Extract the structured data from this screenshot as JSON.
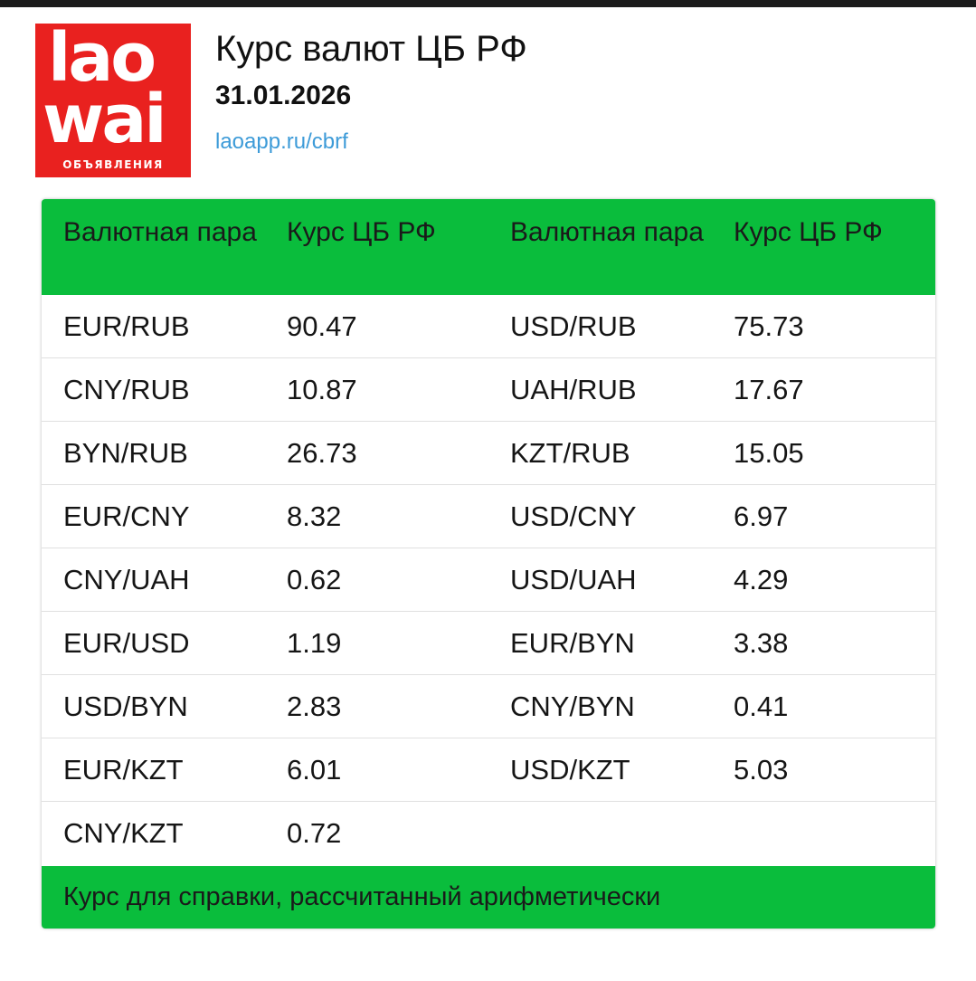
{
  "logo": {
    "line1": "lao",
    "line2": "wai",
    "line3": "ОБЪЯВЛЕНИЯ"
  },
  "header": {
    "title": "Курс валют ЦБ РФ",
    "date": "31.01.2026",
    "link": "laoapp.ru/cbrf"
  },
  "table": {
    "headers": [
      "Валютная пара",
      "Курс ЦБ РФ",
      "Валютная пара",
      "Курс ЦБ РФ"
    ],
    "rows": [
      [
        "EUR/RUB",
        "90.47",
        "USD/RUB",
        "75.73"
      ],
      [
        "CNY/RUB",
        "10.87",
        "UAH/RUB",
        "17.67"
      ],
      [
        "BYN/RUB",
        "26.73",
        "KZT/RUB",
        "15.05"
      ],
      [
        "EUR/CNY",
        "8.32",
        "USD/CNY",
        "6.97"
      ],
      [
        "CNY/UAH",
        "0.62",
        "USD/UAH",
        "4.29"
      ],
      [
        "EUR/USD",
        "1.19",
        "EUR/BYN",
        "3.38"
      ],
      [
        "USD/BYN",
        "2.83",
        "CNY/BYN",
        "0.41"
      ],
      [
        "EUR/KZT",
        "6.01",
        "USD/KZT",
        "5.03"
      ],
      [
        "CNY/KZT",
        "0.72",
        "",
        ""
      ]
    ],
    "footer": "Курс для справки, рассчитанный арифметически"
  },
  "colors": {
    "accent_green": "#0abd3c",
    "logo_red": "#e9211f",
    "link_blue": "#3d9bd8"
  }
}
